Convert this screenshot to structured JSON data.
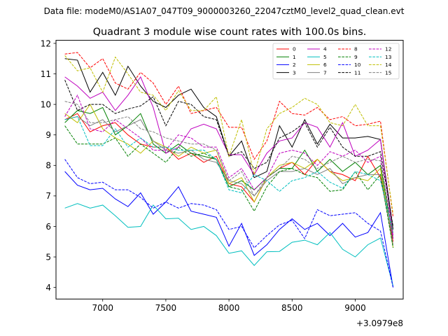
{
  "chart_data": {
    "type": "line",
    "suptitle": "Data file: modeM0/AS1A07_047T09_9000003260_22047cztM0_level2_quad_clean.evt",
    "title": "Quadrant 3 module wise count rates with 100.0s bins.",
    "xlabel": "",
    "ylabel": "",
    "x_offset_label": "+3.0979e8",
    "xlim": [
      6630,
      9380
    ],
    "ylim": [
      3.62,
      12.1
    ],
    "xticks": [
      7000,
      7500,
      8000,
      8500,
      9000
    ],
    "yticks": [
      4,
      5,
      6,
      7,
      8,
      9,
      10,
      11,
      12
    ],
    "x": [
      6700,
      6800,
      6900,
      7000,
      7100,
      7200,
      7300,
      7400,
      7500,
      7600,
      7700,
      7800,
      7900,
      8000,
      8100,
      8200,
      8300,
      8400,
      8500,
      8600,
      8700,
      8800,
      8900,
      9000,
      9100,
      9200,
      9300
    ],
    "legend_location": "upper right",
    "legend_columns": 4,
    "series": [
      {
        "name": "0",
        "color": "#ff0000",
        "dash": "solid",
        "values": [
          9.5,
          9.7,
          9.1,
          9.3,
          9.4,
          9.0,
          8.7,
          8.6,
          8.6,
          8.2,
          8.4,
          8.1,
          8.3,
          7.4,
          7.3,
          6.8,
          7.6,
          7.9,
          8.1,
          7.7,
          8.2,
          7.8,
          7.7,
          7.5,
          8.3,
          7.6,
          5.5
        ]
      },
      {
        "name": "1",
        "color": "#008000",
        "dash": "solid",
        "values": [
          9.4,
          9.8,
          9.7,
          9.9,
          9.0,
          9.3,
          9.7,
          8.7,
          8.4,
          8.7,
          8.4,
          8.3,
          8.2,
          7.3,
          7.5,
          7.2,
          7.6,
          7.9,
          7.9,
          8.5,
          7.8,
          8.2,
          7.8,
          8.1,
          7.7,
          8.0,
          5.6
        ]
      },
      {
        "name": "2",
        "color": "#0000ff",
        "dash": "solid",
        "values": [
          7.8,
          7.35,
          7.2,
          7.25,
          6.9,
          6.65,
          7.1,
          6.4,
          6.8,
          7.3,
          6.5,
          6.4,
          6.3,
          5.35,
          6.1,
          5.05,
          5.4,
          5.9,
          6.25,
          5.9,
          6.1,
          5.7,
          6.1,
          5.65,
          5.8,
          6.45,
          4.0
        ]
      },
      {
        "name": "3",
        "color": "#000000",
        "dash": "solid",
        "values": [
          11.5,
          11.45,
          10.4,
          11.05,
          10.3,
          11.25,
          10.6,
          10.1,
          9.9,
          10.3,
          10.5,
          9.9,
          9.6,
          8.3,
          8.8,
          7.6,
          7.8,
          9.3,
          8.6,
          9.5,
          8.7,
          9.35,
          8.9,
          8.9,
          8.95,
          8.85,
          5.9
        ]
      },
      {
        "name": "4",
        "color": "#bf00bf",
        "dash": "solid",
        "values": [
          10.9,
          10.6,
          10.2,
          10.4,
          9.8,
          10.3,
          10.9,
          9.9,
          8.4,
          8.6,
          9.2,
          9.35,
          9.2,
          8.35,
          8.35,
          7.7,
          8.4,
          8.8,
          8.9,
          9.4,
          9.25,
          8.6,
          9.4,
          8.3,
          8.5,
          8.85,
          5.7
        ]
      },
      {
        "name": "5",
        "color": "#00bfbf",
        "dash": "solid",
        "values": [
          6.6,
          6.75,
          6.6,
          6.7,
          6.35,
          5.97,
          6.0,
          6.7,
          6.25,
          6.27,
          5.9,
          6.0,
          5.7,
          5.12,
          5.2,
          4.72,
          5.17,
          5.18,
          5.48,
          5.55,
          5.4,
          5.8,
          5.25,
          5.0,
          5.4,
          5.62,
          4.05
        ]
      },
      {
        "name": "6",
        "color": "#bfbf00",
        "dash": "solid",
        "values": [
          9.7,
          9.4,
          10.0,
          9.2,
          8.9,
          8.7,
          8.4,
          8.8,
          8.6,
          8.3,
          8.6,
          8.4,
          8.5,
          7.4,
          7.6,
          6.8,
          7.6,
          8.0,
          8.1,
          7.9,
          8.2,
          7.8,
          7.5,
          7.6,
          7.5,
          7.9,
          5.3
        ]
      },
      {
        "name": "7",
        "color": "#808080",
        "dash": "solid",
        "values": [
          9.5,
          9.6,
          9.3,
          9.5,
          9.1,
          9.3,
          9.5,
          8.8,
          8.5,
          8.4,
          8.5,
          8.2,
          8.1,
          7.5,
          7.4,
          7.0,
          7.5,
          7.8,
          7.8,
          7.9,
          7.7,
          7.9,
          7.4,
          7.6,
          7.7,
          7.7,
          5.4
        ]
      },
      {
        "name": "8",
        "color": "#ff0000",
        "dash": "dashed",
        "values": [
          11.65,
          11.7,
          11.2,
          11.5,
          10.7,
          10.5,
          11.05,
          10.7,
          10.0,
          10.6,
          9.7,
          9.8,
          9.9,
          9.25,
          9.25,
          8.2,
          8.8,
          10.1,
          9.7,
          9.65,
          9.9,
          9.5,
          9.6,
          9.3,
          9.35,
          9.45,
          6.3
        ]
      },
      {
        "name": "9",
        "color": "#008000",
        "dash": "dashed",
        "values": [
          9.3,
          8.7,
          8.7,
          8.7,
          8.9,
          8.3,
          8.7,
          8.4,
          8.1,
          8.6,
          8.3,
          8.4,
          8.2,
          7.3,
          7.2,
          6.5,
          7.3,
          7.8,
          7.9,
          7.7,
          7.6,
          7.15,
          7.2,
          7.8,
          7.2,
          7.7,
          5.3
        ]
      },
      {
        "name": "10",
        "color": "#0000ff",
        "dash": "dashed",
        "values": [
          8.2,
          7.6,
          7.4,
          7.45,
          7.2,
          7.2,
          6.95,
          6.6,
          6.8,
          6.6,
          6.75,
          6.7,
          6.55,
          5.9,
          6.0,
          5.3,
          5.7,
          6.05,
          6.2,
          5.6,
          6.55,
          6.35,
          6.4,
          6.45,
          6.1,
          5.85,
          4.0
        ]
      },
      {
        "name": "11",
        "color": "#000000",
        "dash": "dashed",
        "values": [
          10.8,
          9.8,
          10.0,
          10.0,
          9.7,
          9.85,
          9.95,
          10.25,
          9.3,
          10.1,
          10.0,
          9.6,
          9.5,
          8.3,
          8.45,
          7.9,
          8.1,
          8.9,
          9.1,
          9.4,
          8.6,
          9.25,
          8.6,
          8.3,
          8.3,
          8.45,
          6.0
        ]
      },
      {
        "name": "12",
        "color": "#bf00bf",
        "dash": "dashed",
        "values": [
          9.6,
          10.3,
          9.2,
          9.1,
          9.5,
          9.2,
          8.9,
          8.5,
          8.5,
          9.0,
          8.9,
          8.6,
          8.6,
          7.6,
          7.9,
          7.2,
          7.6,
          8.4,
          8.5,
          8.4,
          8.0,
          8.45,
          8.3,
          8.5,
          8.1,
          8.3,
          5.6
        ]
      },
      {
        "name": "13",
        "color": "#00bfbf",
        "dash": "dashed",
        "values": [
          9.5,
          9.6,
          8.65,
          8.65,
          9.2,
          8.6,
          8.9,
          8.6,
          8.6,
          8.5,
          8.5,
          8.5,
          8.2,
          7.2,
          7.1,
          7.7,
          7.5,
          7.15,
          7.5,
          7.6,
          7.8,
          7.45,
          7.25,
          7.8,
          7.7,
          7.5,
          5.8
        ]
      },
      {
        "name": "14",
        "color": "#bfbf00",
        "dash": "dashed",
        "values": [
          11.6,
          11.1,
          11.2,
          10.4,
          11.55,
          11.0,
          10.4,
          10.3,
          9.8,
          10.45,
          9.8,
          9.8,
          10.25,
          8.3,
          9.5,
          7.7,
          9.2,
          9.7,
          9.9,
          10.2,
          10.0,
          9.4,
          9.3,
          10.0,
          9.3,
          9.3,
          6.4
        ]
      },
      {
        "name": "15",
        "color": "#808080",
        "dash": "dashed",
        "values": [
          10.1,
          10.0,
          9.4,
          9.4,
          9.5,
          9.6,
          9.2,
          9.1,
          8.9,
          8.8,
          8.7,
          8.7,
          8.5,
          7.5,
          7.8,
          7.0,
          7.6,
          7.9,
          8.3,
          8.2,
          7.9,
          8.1,
          8.3,
          8.1,
          8.2,
          8.15,
          5.8
        ]
      }
    ]
  }
}
